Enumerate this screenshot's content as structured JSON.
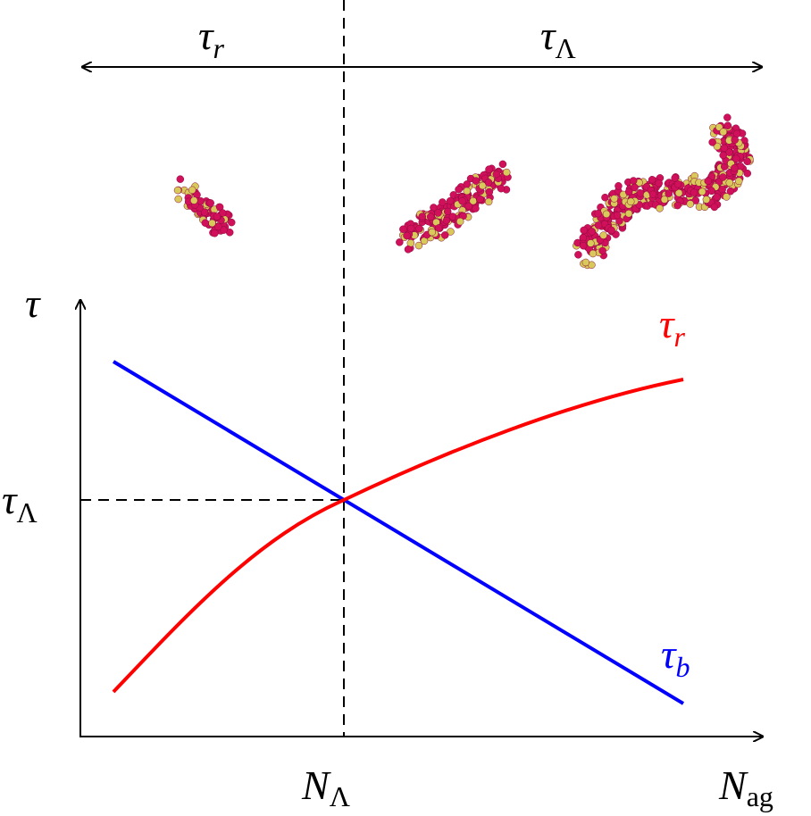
{
  "top_regions": [
    {
      "symbol": "τ",
      "sub": "r"
    },
    {
      "symbol": "τ",
      "sub": "Λ"
    }
  ],
  "axes": {
    "y_label": "τ",
    "x_label": {
      "symbol": "N",
      "sub": "ag"
    }
  },
  "crossing": {
    "y_label": {
      "symbol": "τ",
      "sub": "Λ"
    },
    "x_label": {
      "symbol": "N",
      "sub": "Λ"
    }
  },
  "curves": [
    {
      "label": {
        "symbol": "τ",
        "sub": "r"
      },
      "color": "#ff0000"
    },
    {
      "label": {
        "symbol": "τ",
        "sub": "b"
      },
      "color": "#0000ff"
    }
  ]
}
